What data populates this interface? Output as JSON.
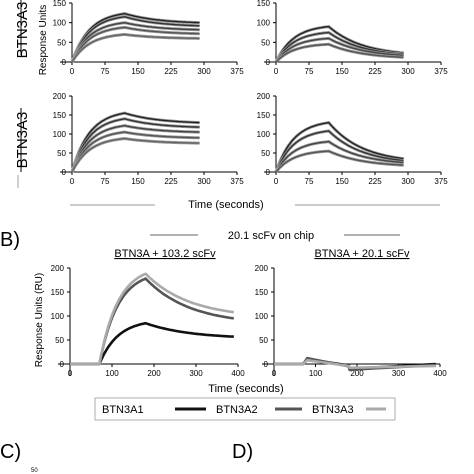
{
  "panels": {
    "b": "B)",
    "c": "C)",
    "d": "D)"
  },
  "fragment_tick": "50",
  "panel_a": {
    "row_labels": [
      "BTN3A3",
      "BTN3A3"
    ],
    "ylabel": "Response Units",
    "xlabel": "Time (seconds)"
  },
  "panel_b": {
    "top_label": "20.1 scFv on chip",
    "titles": [
      "BTN3A + 103.2 scFv",
      "BTN3A + 20.1 scFv"
    ],
    "ylabel": "Response Units (RU)",
    "xlabel": "Time (seconds)",
    "legend": [
      {
        "name": "BTN3A1",
        "color": "#111111"
      },
      {
        "name": "BTN3A2",
        "color": "#555555"
      },
      {
        "name": "BTN3A3",
        "color": "#aaaaaa"
      }
    ]
  },
  "chart_data": [
    {
      "type": "line",
      "panel": "A top-left",
      "xlim": [
        0,
        375
      ],
      "ylim": [
        0,
        150
      ],
      "xticks": [
        "0",
        "75",
        "150",
        "225",
        "300",
        "375"
      ],
      "yticks": [
        "0",
        "50",
        "100",
        "150"
      ],
      "x": [
        0,
        120,
        290
      ],
      "series": [
        {
          "values": [
            0,
            123,
            100
          ]
        },
        {
          "values": [
            0,
            115,
            92
          ]
        },
        {
          "values": [
            0,
            100,
            82
          ]
        },
        {
          "values": [
            0,
            88,
            72
          ]
        },
        {
          "values": [
            0,
            70,
            60
          ]
        }
      ]
    },
    {
      "type": "line",
      "panel": "A top-right",
      "xlim": [
        0,
        375
      ],
      "ylim": [
        0,
        150
      ],
      "xticks": [
        "0",
        "75",
        "150",
        "225",
        "300",
        "375"
      ],
      "yticks": [
        "0",
        "50",
        "100",
        "150"
      ],
      "x": [
        0,
        120,
        290
      ],
      "series": [
        {
          "values": [
            0,
            90,
            23
          ]
        },
        {
          "values": [
            0,
            75,
            20
          ]
        },
        {
          "values": [
            0,
            60,
            17
          ]
        },
        {
          "values": [
            0,
            45,
            12
          ]
        }
      ]
    },
    {
      "type": "line",
      "panel": "A bottom-left",
      "xlim": [
        0,
        375
      ],
      "ylim": [
        0,
        200
      ],
      "xticks": [
        "0",
        "75",
        "150",
        "225",
        "300",
        "375"
      ],
      "yticks": [
        "0",
        "50",
        "100",
        "150",
        "200"
      ],
      "x": [
        0,
        120,
        290
      ],
      "series": [
        {
          "values": [
            0,
            155,
            130
          ]
        },
        {
          "values": [
            0,
            140,
            118
          ]
        },
        {
          "values": [
            0,
            122,
            105
          ]
        },
        {
          "values": [
            0,
            105,
            90
          ]
        },
        {
          "values": [
            0,
            88,
            76
          ]
        }
      ]
    },
    {
      "type": "line",
      "panel": "A bottom-right",
      "xlim": [
        0,
        375
      ],
      "ylim": [
        0,
        200
      ],
      "xticks": [
        "0",
        "75",
        "150",
        "225",
        "300",
        "375"
      ],
      "yticks": [
        "0",
        "50",
        "100",
        "150",
        "200"
      ],
      "x": [
        0,
        120,
        290
      ],
      "series": [
        {
          "values": [
            0,
            130,
            35
          ]
        },
        {
          "values": [
            0,
            108,
            30
          ]
        },
        {
          "values": [
            0,
            80,
            25
          ]
        },
        {
          "values": [
            0,
            55,
            18
          ]
        }
      ]
    },
    {
      "type": "line",
      "panel": "B left",
      "title": "BTN3A + 103.2 scFv",
      "xlabel": "Time (seconds)",
      "ylabel": "Response Units (RU)",
      "xlim": [
        0,
        400
      ],
      "ylim": [
        -25,
        200
      ],
      "xticks": [
        "0",
        "100",
        "200",
        "300",
        "400"
      ],
      "yticks": [
        "0",
        "50",
        "100",
        "150",
        "200"
      ],
      "x": [
        0,
        70,
        180,
        390
      ],
      "series": [
        {
          "name": "BTN3A1",
          "color": "#111111",
          "values": [
            0,
            0,
            85,
            57
          ]
        },
        {
          "name": "BTN3A2",
          "color": "#555555",
          "values": [
            0,
            0,
            178,
            95
          ]
        },
        {
          "name": "BTN3A3",
          "color": "#aaaaaa",
          "values": [
            0,
            0,
            188,
            108
          ]
        }
      ]
    },
    {
      "type": "line",
      "panel": "B right",
      "title": "BTN3A + 20.1 scFv",
      "xlim": [
        0,
        400
      ],
      "ylim": [
        -25,
        200
      ],
      "xticks": [
        "0",
        "100",
        "200",
        "300",
        "400"
      ],
      "yticks": [
        "0",
        "50",
        "100",
        "150",
        "200"
      ],
      "x": [
        0,
        70,
        80,
        180,
        182,
        390
      ],
      "series": [
        {
          "name": "BTN3A1",
          "color": "#111111",
          "values": [
            0,
            0,
            10,
            -3,
            -10,
            0
          ]
        },
        {
          "name": "BTN3A2",
          "color": "#555555",
          "values": [
            0,
            0,
            12,
            -5,
            -12,
            -2
          ]
        },
        {
          "name": "BTN3A3",
          "color": "#aaaaaa",
          "values": [
            0,
            0,
            8,
            -4,
            -8,
            -4
          ]
        }
      ]
    }
  ]
}
